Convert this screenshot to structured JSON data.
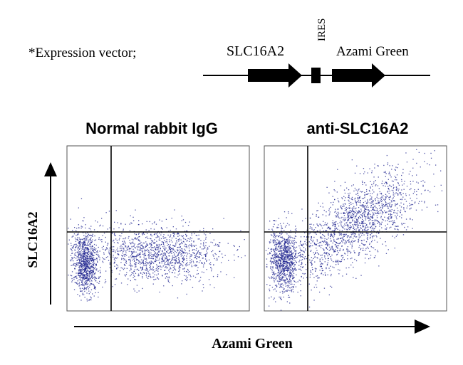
{
  "vector": {
    "label": "*Expression vector;",
    "gene_label": "SLC16A2",
    "ires_label": "IRES",
    "reporter_label": "Azami Green"
  },
  "panels": [
    {
      "title": "Normal rabbit IgG",
      "pattern": "control"
    },
    {
      "title": "anti-SLC16A2",
      "pattern": "stained"
    }
  ],
  "axes": {
    "y_label": "SLC16A2",
    "x_label": "Azami Green"
  },
  "colors": {
    "ink": "#000000",
    "dot": "#1a1f8c",
    "background": "#ffffff"
  },
  "icons": {
    "gene_arrow": "right-arrow",
    "ires_block": "filled-rectangle",
    "reporter_arrow": "right-arrow",
    "y_axis_arrow": "up-arrow",
    "x_axis_arrow": "right-arrow"
  }
}
